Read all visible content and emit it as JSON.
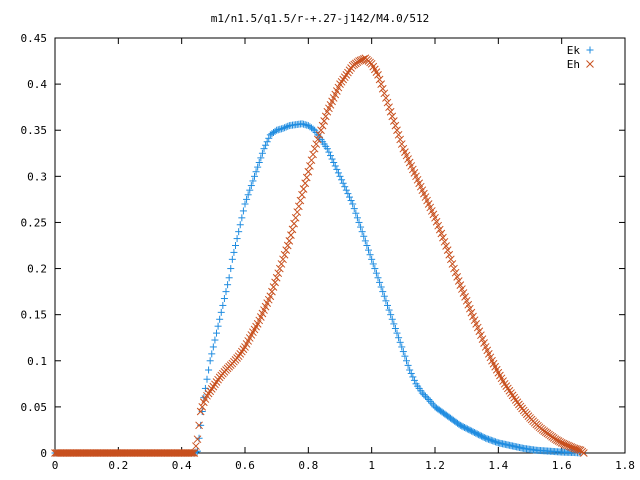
{
  "chart_data": {
    "type": "scatter",
    "title": "m1/n1.5/q1.5/r-+.27-j142/M4.0/512",
    "xlabel": "",
    "ylabel": "",
    "xlim": [
      0,
      1.8
    ],
    "ylim": [
      0,
      0.45
    ],
    "xticks": [
      "0",
      "0.2",
      "0.4",
      "0.6",
      "0.8",
      "1",
      "1.2",
      "1.4",
      "1.6",
      "1.8"
    ],
    "yticks": [
      "0",
      "0.05",
      "0.1",
      "0.15",
      "0.2",
      "0.25",
      "0.3",
      "0.35",
      "0.4",
      "0.45"
    ],
    "grid": false,
    "legend": "top-right",
    "series": [
      {
        "name": "Ek",
        "marker": "plus",
        "color": "#1f8ce0",
        "x": [
          0.0,
          0.44,
          0.45,
          0.46,
          0.47,
          0.48,
          0.49,
          0.5,
          0.51,
          0.52,
          0.53,
          0.54,
          0.55,
          0.56,
          0.57,
          0.58,
          0.6,
          0.62,
          0.64,
          0.66,
          0.68,
          0.7,
          0.72,
          0.74,
          0.76,
          0.78,
          0.8,
          0.82,
          0.84,
          0.86,
          0.88,
          0.9,
          0.92,
          0.94,
          0.96,
          0.98,
          1.0,
          1.02,
          1.04,
          1.06,
          1.08,
          1.1,
          1.12,
          1.14,
          1.16,
          1.18,
          1.2,
          1.24,
          1.28,
          1.32,
          1.36,
          1.4,
          1.44,
          1.48,
          1.52,
          1.56,
          1.6,
          1.64,
          1.66
        ],
        "y": [
          0.0,
          0.0,
          0.002,
          0.03,
          0.06,
          0.08,
          0.1,
          0.115,
          0.13,
          0.145,
          0.16,
          0.175,
          0.19,
          0.21,
          0.225,
          0.24,
          0.27,
          0.29,
          0.31,
          0.33,
          0.345,
          0.35,
          0.352,
          0.355,
          0.356,
          0.357,
          0.355,
          0.35,
          0.34,
          0.33,
          0.315,
          0.3,
          0.285,
          0.27,
          0.25,
          0.23,
          0.21,
          0.19,
          0.17,
          0.15,
          0.13,
          0.11,
          0.09,
          0.075,
          0.065,
          0.058,
          0.05,
          0.04,
          0.03,
          0.023,
          0.016,
          0.011,
          0.008,
          0.005,
          0.003,
          0.002,
          0.001,
          0.0005,
          0.0
        ]
      },
      {
        "name": "Eh",
        "marker": "cross",
        "color": "#c8501e",
        "x": [
          0.0,
          0.44,
          0.45,
          0.46,
          0.47,
          0.48,
          0.5,
          0.52,
          0.54,
          0.56,
          0.58,
          0.6,
          0.62,
          0.64,
          0.66,
          0.68,
          0.7,
          0.72,
          0.74,
          0.76,
          0.78,
          0.8,
          0.82,
          0.84,
          0.86,
          0.88,
          0.9,
          0.92,
          0.94,
          0.96,
          0.98,
          1.0,
          1.02,
          1.04,
          1.06,
          1.08,
          1.1,
          1.12,
          1.14,
          1.16,
          1.18,
          1.2,
          1.22,
          1.24,
          1.26,
          1.28,
          1.3,
          1.32,
          1.34,
          1.36,
          1.38,
          1.4,
          1.42,
          1.44,
          1.46,
          1.48,
          1.5,
          1.52,
          1.54,
          1.56,
          1.58,
          1.6,
          1.62,
          1.64,
          1.66,
          1.67
        ],
        "y": [
          0.0,
          0.0,
          0.015,
          0.045,
          0.055,
          0.062,
          0.072,
          0.082,
          0.09,
          0.097,
          0.105,
          0.115,
          0.128,
          0.14,
          0.155,
          0.17,
          0.19,
          0.21,
          0.23,
          0.255,
          0.28,
          0.305,
          0.33,
          0.35,
          0.37,
          0.385,
          0.4,
          0.41,
          0.42,
          0.425,
          0.428,
          0.422,
          0.41,
          0.39,
          0.37,
          0.35,
          0.33,
          0.315,
          0.3,
          0.285,
          0.27,
          0.255,
          0.238,
          0.22,
          0.2,
          0.182,
          0.165,
          0.148,
          0.132,
          0.115,
          0.1,
          0.087,
          0.075,
          0.065,
          0.055,
          0.046,
          0.038,
          0.031,
          0.025,
          0.02,
          0.015,
          0.011,
          0.008,
          0.005,
          0.003,
          0.0
        ]
      }
    ]
  }
}
